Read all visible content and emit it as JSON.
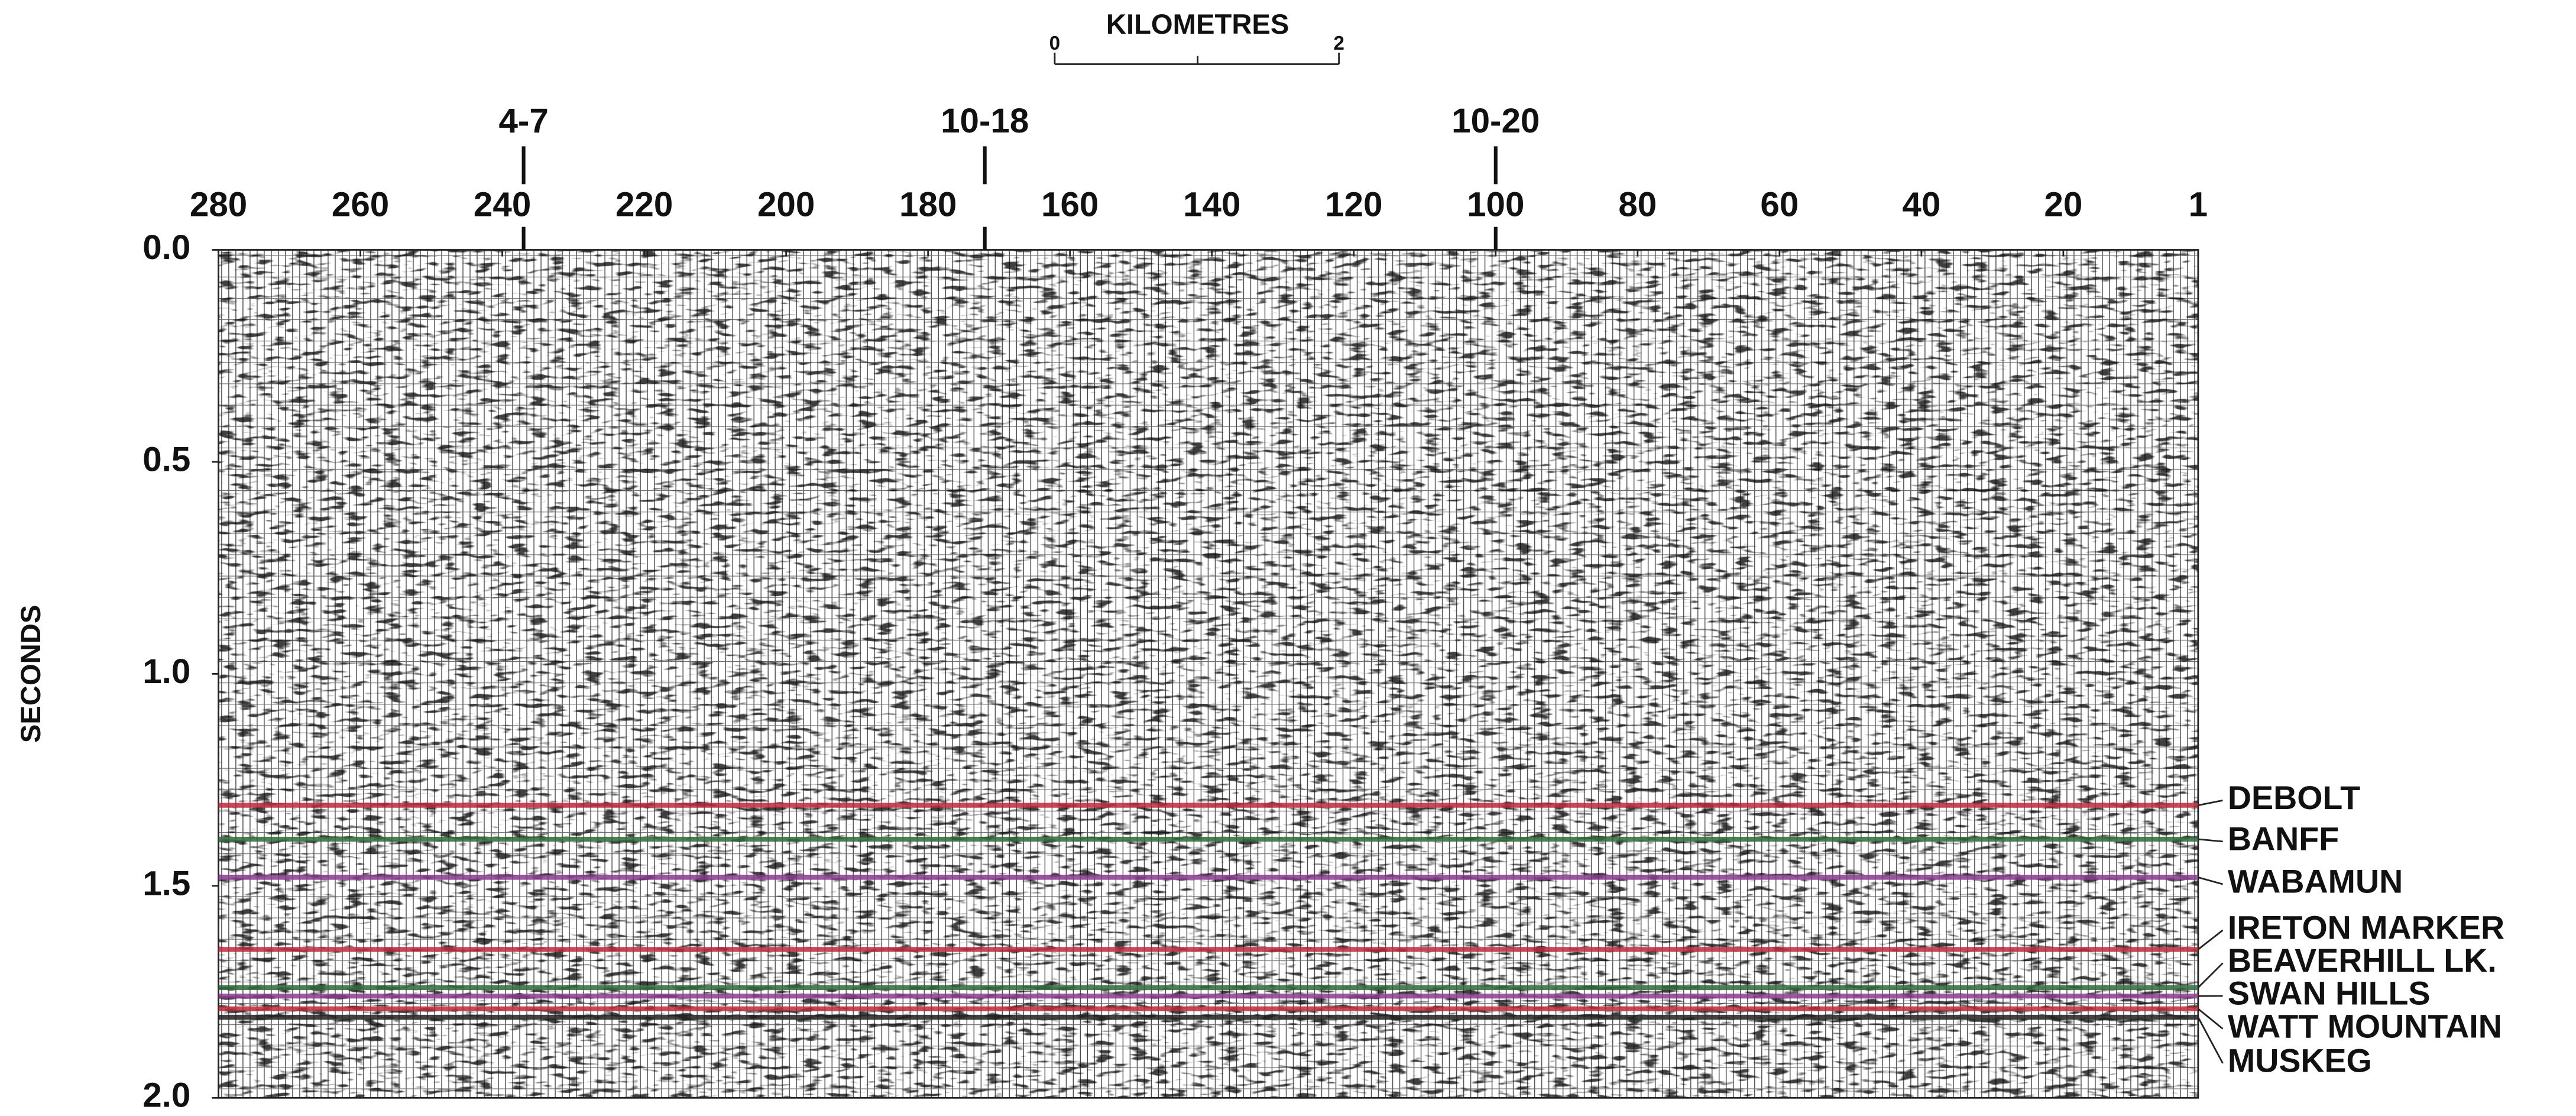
{
  "chart_data": {
    "type": "seismic",
    "scale_bar": {
      "label": "KILOMETRES",
      "ticks": [
        0,
        2
      ]
    },
    "y_label": "SECONDS",
    "xlim": [
      280,
      1
    ],
    "xticks": [
      280,
      260,
      240,
      220,
      200,
      180,
      160,
      140,
      120,
      100,
      80,
      60,
      40,
      20,
      1
    ],
    "ylim": [
      0,
      2
    ],
    "yticks": [
      {
        "value": 0,
        "label": "0.0"
      },
      0.5,
      {
        "value": 1,
        "label": "1.0"
      },
      1.5,
      {
        "value": 2,
        "label": "2.0"
      }
    ],
    "wells": [
      {
        "name": "4-7",
        "trace": 237
      },
      {
        "name": "10-18",
        "trace": 172
      },
      {
        "name": "10-20",
        "trace": 100
      }
    ],
    "horizons": [
      {
        "name": "DEBOLT",
        "time": 1.31,
        "color": "#c0283a"
      },
      {
        "name": "BANFF",
        "time": 1.39,
        "color": "#2f6b3a"
      },
      {
        "name": "WABAMUN",
        "time": 1.48,
        "color": "#8a3a8f"
      },
      {
        "name": "IRETON MARKER",
        "time": 1.65,
        "color": "#c0283a"
      },
      {
        "name": "BEAVERHILL LK.",
        "time": 1.74,
        "color": "#2f6b3a"
      },
      {
        "name": "SWAN HILLS",
        "time": 1.76,
        "color": "#8a3a8f"
      },
      {
        "name": "WATT MOUNTAIN",
        "time": 1.79,
        "color": "#c0283a"
      },
      {
        "name": "MUSKEG",
        "time": 1.81,
        "color": "#222222"
      }
    ]
  }
}
